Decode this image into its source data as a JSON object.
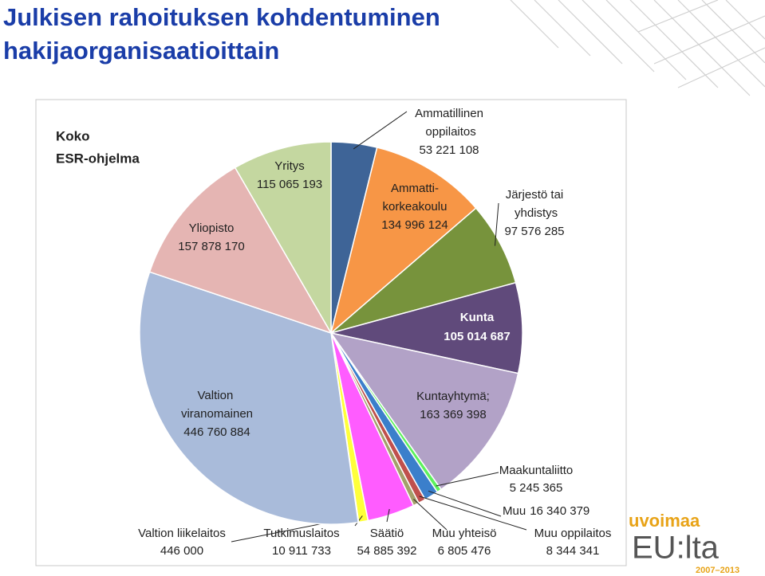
{
  "chart_data": {
    "type": "pie",
    "title": [
      "Julkisen rahoituksen kohdentuminen",
      "hakijaorganisaatioittain"
    ],
    "annotation": [
      "Koko",
      "ESR-ohjelma"
    ],
    "categories": [
      "Ammatillinen oppilaitos",
      "Ammatti-korkeakoulu",
      "Järjestö tai yhdistys",
      "Kunta",
      "Kuntayhtymä;",
      "Maakuntaliitto",
      "Muu",
      "Muu oppilaitos",
      "Muu yhteisö",
      "Säätiö",
      "Tutkimuslaitos",
      "Valtion liikelaitos",
      "Valtion viranomainen",
      "Yliopisto",
      "Yritys"
    ],
    "values": [
      53221108,
      134996124,
      97576285,
      105014687,
      163369398,
      5245365,
      16340379,
      8344341,
      6805476,
      54885392,
      10911733,
      446000,
      446760884,
      157878170,
      115065193
    ],
    "value_labels": [
      "53 221 108",
      "134 996 124",
      "97 576 285",
      "105 014 687",
      "163 369 398",
      "5 245 365",
      "16 340 379",
      "8 344 341",
      "6 805 476",
      "54 885 392",
      "10 911 733",
      "446 000",
      "446 760 884",
      "157 878 170",
      "115 065 193"
    ],
    "colors": [
      "#3e6497",
      "#f79646",
      "#77933c",
      "#604a7b",
      "#b2a2c7",
      "#5cf25c",
      "#3b7fcb",
      "#c0504d",
      "#a3a06a",
      "#ff5cff",
      "#ffff3a",
      "#d9d9d9",
      "#a9bbda",
      "#e5b5b3",
      "#c4d7a0"
    ]
  },
  "logo": {
    "text": "uvoimaa",
    "mark": "EU:lta",
    "years": "2007–2013"
  }
}
